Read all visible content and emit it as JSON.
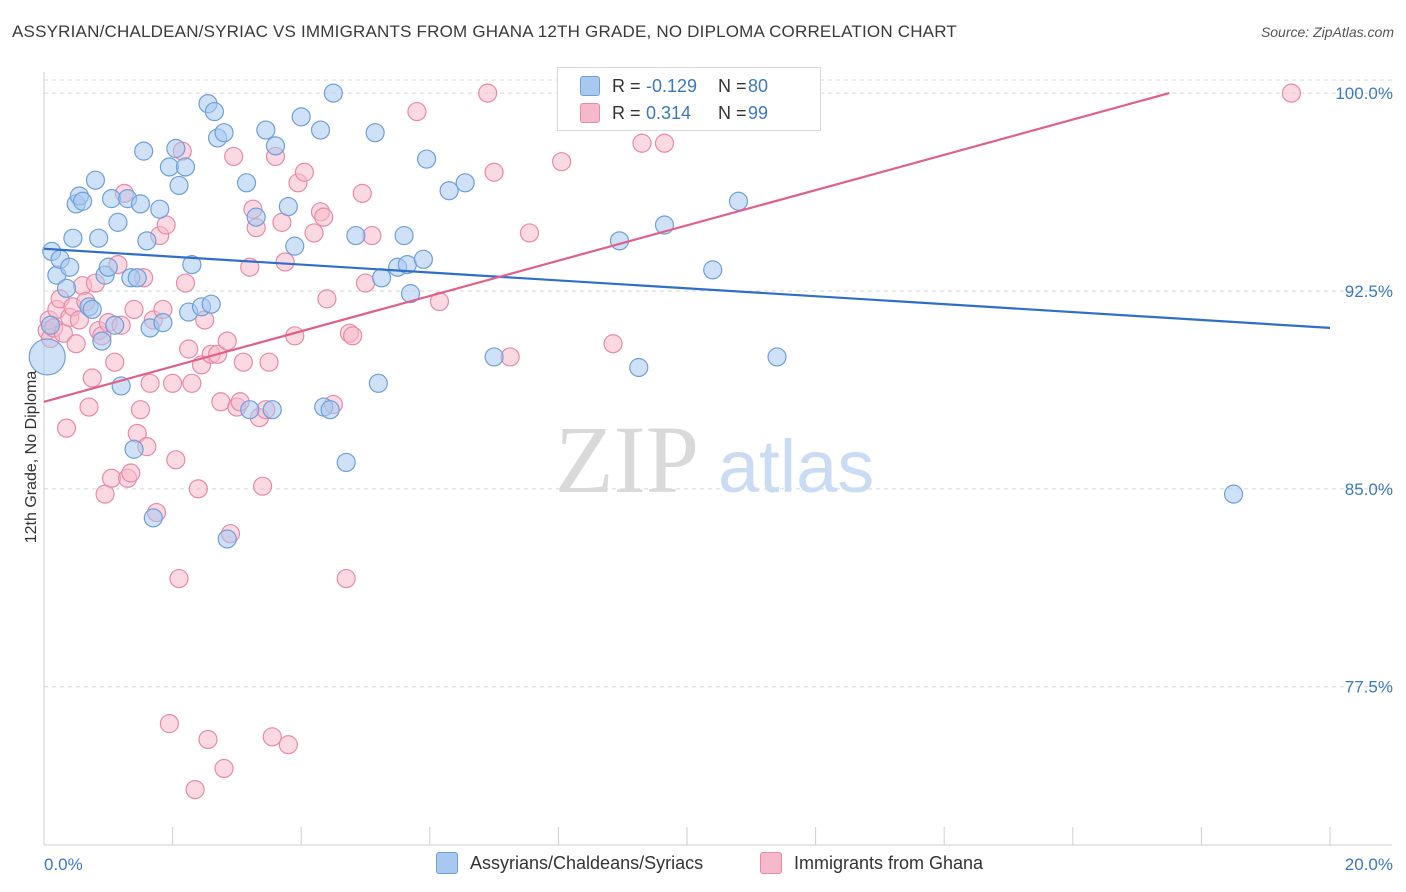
{
  "title": "ASSYRIAN/CHALDEAN/SYRIAC VS IMMIGRANTS FROM GHANA 12TH GRADE, NO DIPLOMA CORRELATION CHART",
  "source": "Source: ZipAtlas.com",
  "watermark": {
    "zip": "ZIP",
    "atlas": "atlas"
  },
  "legend": {
    "rows": [
      {
        "r_label": "R =",
        "r_value": "-0.129",
        "n_label": "N =",
        "n_value": "80"
      },
      {
        "r_label": "R =",
        "r_value": "0.314",
        "n_label": "N =",
        "n_value": "99"
      }
    ]
  },
  "colors": {
    "blue_fill": "#a8c8f0",
    "blue_stroke": "#6f9fd8",
    "blue_line": "#2f6fc8",
    "pink_fill": "#f5b9cb",
    "pink_stroke": "#e88aa7",
    "pink_line": "#e0608a",
    "axis_text": "#3b78c3",
    "grid": "#d6d6d6"
  },
  "chart_data": {
    "type": "scatter",
    "title": "ASSYRIAN/CHALDEAN/SYRIAC VS IMMIGRANTS FROM GHANA 12TH GRADE, NO DIPLOMA CORRELATION CHART",
    "xlabel": "",
    "ylabel": "12th Grade, No Diploma",
    "xlim": [
      0,
      20
    ],
    "ylim": [
      71.5,
      100.8
    ],
    "x_tick_labels": [
      "0.0%",
      "20.0%"
    ],
    "y_ticks": [
      77.5,
      85.0,
      92.5,
      100.0
    ],
    "y_tick_labels": [
      "77.5%",
      "85.0%",
      "92.5%",
      "100.0%"
    ],
    "grid": true,
    "legend_position": "top-center",
    "series": [
      {
        "name": "Assyrians/Chaldeans/Syriacs",
        "r": -0.129,
        "n": 80,
        "trend": {
          "x": [
            0,
            20
          ],
          "y": [
            94.1,
            91.1
          ]
        },
        "points": [
          [
            0.05,
            90.0
          ],
          [
            0.1,
            91.2
          ],
          [
            0.12,
            94.0
          ],
          [
            0.2,
            93.1
          ],
          [
            0.25,
            93.7
          ],
          [
            0.35,
            92.6
          ],
          [
            0.4,
            93.4
          ],
          [
            0.45,
            94.5
          ],
          [
            0.5,
            95.8
          ],
          [
            0.55,
            96.1
          ],
          [
            0.6,
            95.9
          ],
          [
            0.7,
            91.9
          ],
          [
            0.75,
            91.8
          ],
          [
            0.8,
            96.7
          ],
          [
            0.85,
            94.5
          ],
          [
            0.9,
            90.6
          ],
          [
            0.95,
            93.1
          ],
          [
            1.0,
            93.4
          ],
          [
            1.05,
            96.0
          ],
          [
            1.1,
            91.2
          ],
          [
            1.15,
            95.1
          ],
          [
            1.2,
            88.9
          ],
          [
            1.3,
            96.0
          ],
          [
            1.35,
            93.0
          ],
          [
            1.4,
            86.5
          ],
          [
            1.45,
            93.0
          ],
          [
            1.5,
            95.8
          ],
          [
            1.55,
            97.8
          ],
          [
            1.6,
            94.4
          ],
          [
            1.65,
            91.1
          ],
          [
            1.7,
            83.9
          ],
          [
            1.8,
            95.6
          ],
          [
            1.85,
            91.3
          ],
          [
            1.95,
            97.2
          ],
          [
            2.05,
            97.9
          ],
          [
            2.1,
            96.5
          ],
          [
            2.2,
            97.2
          ],
          [
            2.25,
            91.7
          ],
          [
            2.3,
            93.5
          ],
          [
            2.45,
            91.9
          ],
          [
            2.55,
            99.6
          ],
          [
            2.6,
            92.0
          ],
          [
            2.65,
            99.3
          ],
          [
            2.7,
            98.3
          ],
          [
            2.8,
            98.5
          ],
          [
            2.85,
            83.1
          ],
          [
            3.15,
            96.6
          ],
          [
            3.2,
            88.0
          ],
          [
            3.3,
            95.3
          ],
          [
            3.45,
            98.6
          ],
          [
            3.55,
            88.0
          ],
          [
            3.6,
            98.0
          ],
          [
            3.8,
            95.7
          ],
          [
            3.9,
            94.2
          ],
          [
            4.0,
            99.1
          ],
          [
            4.3,
            98.6
          ],
          [
            4.35,
            88.1
          ],
          [
            4.45,
            88.0
          ],
          [
            4.5,
            100.0
          ],
          [
            4.7,
            86.0
          ],
          [
            4.85,
            94.6
          ],
          [
            5.15,
            98.5
          ],
          [
            5.2,
            89.0
          ],
          [
            5.25,
            93.0
          ],
          [
            5.5,
            93.4
          ],
          [
            5.6,
            94.6
          ],
          [
            5.65,
            93.5
          ],
          [
            5.7,
            92.4
          ],
          [
            5.9,
            93.7
          ],
          [
            5.95,
            97.5
          ],
          [
            6.3,
            96.3
          ],
          [
            6.55,
            96.6
          ],
          [
            7.0,
            90.0
          ],
          [
            8.95,
            94.4
          ],
          [
            9.25,
            89.6
          ],
          [
            9.65,
            95.0
          ],
          [
            10.4,
            93.3
          ],
          [
            10.8,
            95.9
          ],
          [
            11.4,
            90.0
          ],
          [
            18.5,
            84.8
          ]
        ]
      },
      {
        "name": "Immigrants from Ghana",
        "r": 0.314,
        "n": 99,
        "trend": {
          "x": [
            0,
            17.5
          ],
          "y": [
            88.3,
            100.0
          ]
        },
        "points": [
          [
            0.05,
            91.0
          ],
          [
            0.08,
            91.4
          ],
          [
            0.1,
            90.7
          ],
          [
            0.15,
            91.1
          ],
          [
            0.2,
            91.8
          ],
          [
            0.25,
            92.2
          ],
          [
            0.3,
            90.9
          ],
          [
            0.35,
            87.3
          ],
          [
            0.4,
            91.5
          ],
          [
            0.45,
            91.9
          ],
          [
            0.5,
            90.5
          ],
          [
            0.55,
            91.4
          ],
          [
            0.6,
            92.7
          ],
          [
            0.65,
            92.1
          ],
          [
            0.7,
            88.1
          ],
          [
            0.75,
            89.2
          ],
          [
            0.8,
            92.8
          ],
          [
            0.85,
            91.0
          ],
          [
            0.9,
            90.8
          ],
          [
            0.95,
            84.8
          ],
          [
            1.0,
            91.3
          ],
          [
            1.05,
            85.4
          ],
          [
            1.1,
            89.8
          ],
          [
            1.15,
            93.5
          ],
          [
            1.2,
            91.2
          ],
          [
            1.25,
            96.2
          ],
          [
            1.3,
            85.4
          ],
          [
            1.35,
            85.6
          ],
          [
            1.4,
            91.8
          ],
          [
            1.45,
            87.1
          ],
          [
            1.5,
            88.0
          ],
          [
            1.55,
            93.0
          ],
          [
            1.6,
            86.6
          ],
          [
            1.65,
            89.0
          ],
          [
            1.7,
            91.4
          ],
          [
            1.75,
            84.1
          ],
          [
            1.8,
            94.6
          ],
          [
            1.85,
            91.8
          ],
          [
            1.9,
            95.0
          ],
          [
            1.95,
            76.1
          ],
          [
            2.0,
            89.0
          ],
          [
            2.05,
            86.1
          ],
          [
            2.1,
            81.6
          ],
          [
            2.15,
            97.8
          ],
          [
            2.2,
            92.8
          ],
          [
            2.25,
            90.3
          ],
          [
            2.3,
            89.0
          ],
          [
            2.35,
            73.6
          ],
          [
            2.4,
            85.0
          ],
          [
            2.45,
            89.7
          ],
          [
            2.5,
            91.4
          ],
          [
            2.55,
            75.5
          ],
          [
            2.6,
            90.1
          ],
          [
            2.7,
            90.1
          ],
          [
            2.75,
            88.3
          ],
          [
            2.8,
            74.4
          ],
          [
            2.85,
            90.6
          ],
          [
            2.9,
            83.3
          ],
          [
            2.95,
            97.6
          ],
          [
            3.0,
            88.1
          ],
          [
            3.05,
            88.3
          ],
          [
            3.1,
            89.8
          ],
          [
            3.2,
            93.4
          ],
          [
            3.25,
            95.6
          ],
          [
            3.3,
            94.9
          ],
          [
            3.35,
            87.7
          ],
          [
            3.4,
            85.1
          ],
          [
            3.45,
            88.0
          ],
          [
            3.5,
            89.8
          ],
          [
            3.55,
            75.6
          ],
          [
            3.6,
            97.6
          ],
          [
            3.7,
            95.1
          ],
          [
            3.75,
            93.6
          ],
          [
            3.8,
            75.3
          ],
          [
            3.9,
            90.8
          ],
          [
            3.95,
            96.6
          ],
          [
            4.05,
            97.0
          ],
          [
            4.2,
            94.7
          ],
          [
            4.3,
            95.5
          ],
          [
            4.35,
            95.3
          ],
          [
            4.4,
            92.2
          ],
          [
            4.5,
            88.2
          ],
          [
            4.7,
            81.6
          ],
          [
            4.75,
            90.9
          ],
          [
            4.8,
            90.8
          ],
          [
            4.95,
            96.2
          ],
          [
            5.0,
            92.8
          ],
          [
            5.1,
            94.6
          ],
          [
            5.8,
            99.3
          ],
          [
            6.15,
            92.1
          ],
          [
            6.9,
            100.0
          ],
          [
            7.0,
            97.0
          ],
          [
            7.25,
            90.0
          ],
          [
            7.55,
            94.7
          ],
          [
            8.05,
            97.4
          ],
          [
            8.85,
            90.5
          ],
          [
            9.3,
            98.1
          ],
          [
            9.65,
            98.1
          ],
          [
            19.4,
            100.0
          ]
        ]
      }
    ]
  },
  "bottom_legend": [
    {
      "label": "Assyrians/Chaldeans/Syriacs"
    },
    {
      "label": "Immigrants from Ghana"
    }
  ]
}
